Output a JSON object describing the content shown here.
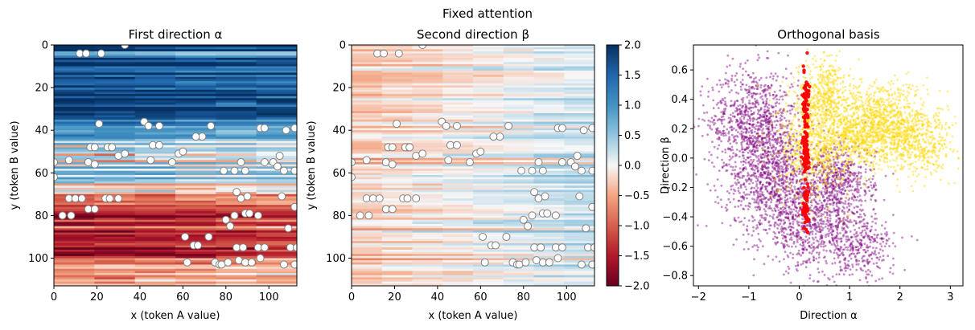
{
  "suptitle": "Fixed attention",
  "colors": {
    "diverging_low": "#67001f",
    "diverging_mid": "#f7f7f7",
    "diverging_high": "#053061",
    "marker_fill": "#ffffff",
    "marker_edge": "#808080",
    "cluster_a": "#800080",
    "cluster_b": "#ffd700",
    "cluster_c": "#ff0000"
  },
  "chart_data": [
    {
      "type": "heatmap",
      "title": "First direction α",
      "xlabel": "x (token A value)",
      "ylabel": "y (token B value)",
      "xlim": [
        0,
        113
      ],
      "ylim": [
        113,
        0
      ],
      "xticks": [
        0,
        20,
        40,
        60,
        80,
        100
      ],
      "yticks": [
        0,
        20,
        40,
        60,
        80,
        100
      ],
      "colormap": "RdBu",
      "vmin": -2,
      "vmax": 2,
      "value_bands": [
        {
          "y": [
            0,
            3
          ],
          "value": 1.9
        },
        {
          "y": [
            3,
            5
          ],
          "value": 0.7
        },
        {
          "y": [
            5,
            35
          ],
          "value": 1.7
        },
        {
          "y": [
            35,
            45
          ],
          "value": 0.9
        },
        {
          "y": [
            45,
            65
          ],
          "value": 0.3
        },
        {
          "y": [
            65,
            70
          ],
          "value": -0.3
        },
        {
          "y": [
            70,
            100
          ],
          "value": -1.2
        },
        {
          "y": [
            100,
            113
          ],
          "value": -0.5
        }
      ],
      "markers_xy": [
        [
          12,
          4
        ],
        [
          15,
          4
        ],
        [
          22,
          4
        ],
        [
          33,
          0
        ],
        [
          21,
          37
        ],
        [
          42,
          36
        ],
        [
          44,
          38
        ],
        [
          49,
          38
        ],
        [
          69,
          43
        ],
        [
          73,
          38
        ],
        [
          96,
          39
        ],
        [
          98,
          39
        ],
        [
          112,
          39
        ],
        [
          108,
          40
        ],
        [
          66,
          43
        ],
        [
          17,
          48
        ],
        [
          19,
          48
        ],
        [
          26,
          48
        ],
        [
          25,
          48
        ],
        [
          27,
          48
        ],
        [
          46,
          47
        ],
        [
          49,
          47
        ],
        [
          58,
          51
        ],
        [
          60,
          50
        ],
        [
          30,
          52
        ],
        [
          33,
          51
        ],
        [
          45,
          54
        ],
        [
          16,
          55
        ],
        [
          19,
          56
        ],
        [
          55,
          55
        ],
        [
          87,
          55
        ],
        [
          89,
          59
        ],
        [
          98,
          55
        ],
        [
          102,
          55
        ],
        [
          105,
          52
        ],
        [
          104,
          57
        ],
        [
          107,
          59
        ],
        [
          0,
          55
        ],
        [
          7,
          54
        ],
        [
          79,
          59
        ],
        [
          84,
          59
        ],
        [
          112,
          59
        ],
        [
          0,
          62
        ],
        [
          7,
          72
        ],
        [
          10,
          72
        ],
        [
          13,
          72
        ],
        [
          4,
          80
        ],
        [
          8,
          80
        ],
        [
          16,
          77
        ],
        [
          19,
          77
        ],
        [
          24,
          72
        ],
        [
          26,
          72
        ],
        [
          30,
          72
        ],
        [
          85,
          69
        ],
        [
          87,
          72
        ],
        [
          90,
          71
        ],
        [
          106,
          71
        ],
        [
          80,
          82
        ],
        [
          84,
          80
        ],
        [
          89,
          79
        ],
        [
          91,
          79
        ],
        [
          95,
          80
        ],
        [
          109,
          86
        ],
        [
          112,
          76
        ],
        [
          61,
          90
        ],
        [
          72,
          90
        ],
        [
          82,
          85
        ],
        [
          65,
          94
        ],
        [
          67,
          94
        ],
        [
          85,
          95
        ],
        [
          88,
          95
        ],
        [
          95,
          95
        ],
        [
          98,
          95
        ],
        [
          110,
          95
        ],
        [
          113,
          95
        ],
        [
          62,
          102
        ],
        [
          75,
          102
        ],
        [
          77,
          103
        ],
        [
          78,
          103
        ],
        [
          81,
          102
        ],
        [
          86,
          101
        ],
        [
          89,
          102
        ],
        [
          92,
          102
        ],
        [
          96,
          100
        ],
        [
          112,
          103
        ],
        [
          107,
          103
        ]
      ]
    },
    {
      "type": "heatmap",
      "title": "Second direction β",
      "xlabel": "x (token A value)",
      "ylabel": "y (token B value)",
      "xlim": [
        0,
        113
      ],
      "ylim": [
        113,
        0
      ],
      "xticks": [
        0,
        20,
        40,
        60,
        80,
        100
      ],
      "yticks": [
        0,
        20,
        40,
        60,
        80,
        100
      ],
      "colormap": "RdBu",
      "vmin": -2,
      "vmax": 2,
      "colorbar_ticks": [
        2.0,
        1.5,
        1.0,
        0.5,
        0.0,
        -0.5,
        -1.0,
        -1.5,
        -2.0
      ],
      "colorbar_tick_labels": [
        "2.0",
        "1.5",
        "1.0",
        "0.5",
        "0.0",
        "−0.5",
        "−1.0",
        "−1.5",
        "−2.0"
      ]
    },
    {
      "type": "scatter",
      "title": "Orthogonal basis",
      "xlabel": "Direction α",
      "ylabel": "Direction β",
      "xlim": [
        -2.1,
        3.25
      ],
      "ylim": [
        -0.87,
        0.77
      ],
      "xticks": [
        -2,
        -1,
        0,
        1,
        2,
        3
      ],
      "yticks": [
        0.6,
        0.4,
        0.2,
        0.0,
        -0.2,
        -0.4,
        -0.6,
        -0.8
      ],
      "ytick_labels": [
        "0.6",
        "0.4",
        "0.2",
        "0.0",
        "−0.2",
        "−0.4",
        "−0.6",
        "−0.8"
      ],
      "xtick_labels": [
        "−2",
        "−1",
        "0",
        "1",
        "2",
        "3"
      ],
      "series": [
        {
          "color": "#800080",
          "clusters": [
            {
              "cx": -0.9,
              "cy": 0.25,
              "sx": 0.45,
              "sy": 0.18,
              "n": 900
            },
            {
              "cx": -0.5,
              "cy": -0.15,
              "sx": 0.5,
              "sy": 0.18,
              "n": 900
            },
            {
              "cx": 0.2,
              "cy": -0.45,
              "sx": 0.45,
              "sy": 0.15,
              "n": 700
            },
            {
              "cx": 0.8,
              "cy": -0.15,
              "sx": 0.35,
              "sy": 0.12,
              "n": 500
            },
            {
              "cx": 1.2,
              "cy": -0.6,
              "sx": 0.35,
              "sy": 0.12,
              "n": 350
            }
          ]
        },
        {
          "color": "#ffd700",
          "clusters": [
            {
              "cx": 0.3,
              "cy": 0.1,
              "sx": 0.35,
              "sy": 0.18,
              "n": 700
            },
            {
              "cx": 0.5,
              "cy": 0.45,
              "sx": 0.25,
              "sy": 0.12,
              "n": 400
            },
            {
              "cx": 1.6,
              "cy": 0.25,
              "sx": 0.4,
              "sy": 0.14,
              "n": 700
            },
            {
              "cx": 2.3,
              "cy": 0.12,
              "sx": 0.4,
              "sy": 0.12,
              "n": 600
            },
            {
              "cx": 1.1,
              "cy": 0.15,
              "sx": 0.3,
              "sy": 0.1,
              "n": 400
            }
          ]
        },
        {
          "color": "#ff0000",
          "clusters": [
            {
              "cx": 0.13,
              "cy": 0.4,
              "sx": 0.03,
              "sy": 0.1,
              "n": 60
            },
            {
              "cx": 0.13,
              "cy": 0.05,
              "sx": 0.03,
              "sy": 0.09,
              "n": 80
            },
            {
              "cx": 0.13,
              "cy": -0.35,
              "sx": 0.03,
              "sy": 0.07,
              "n": 60
            }
          ]
        }
      ]
    }
  ]
}
